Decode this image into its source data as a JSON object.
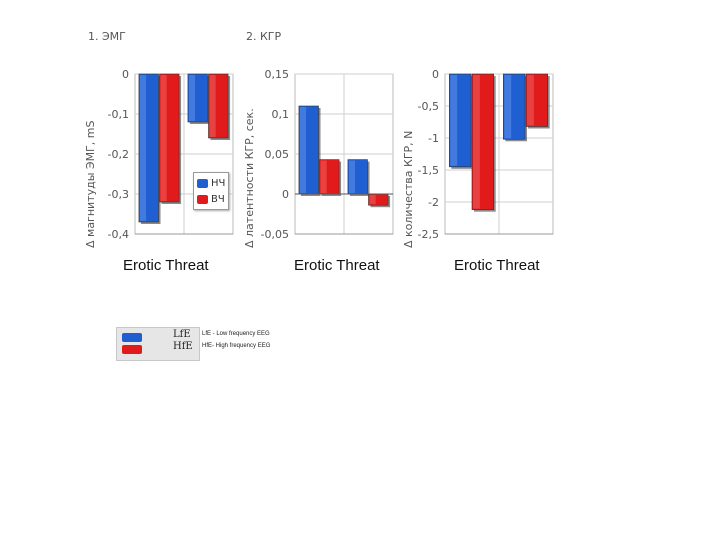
{
  "colors": {
    "blue": "#1f5fd1",
    "red": "#e11b1b",
    "grid": "#cfcfcf"
  },
  "legend": {
    "items": [
      {
        "code": "LfE",
        "desc": "LfE - Low frequency EEG",
        "color": "#1f5fd1"
      },
      {
        "code": "HfE",
        "desc": "HfE- High frequency EEG",
        "color": "#e11b1b"
      }
    ]
  },
  "chart_data": [
    {
      "type": "bar",
      "title": "1. ЭМГ",
      "ylabel": "Δ магнитуды ЭМГ, mS",
      "categories": [
        "Erotic",
        "Threat"
      ],
      "series": [
        {
          "name": "НЧ",
          "values": [
            -0.37,
            -0.12
          ]
        },
        {
          "name": "ВЧ",
          "values": [
            -0.32,
            -0.16
          ]
        }
      ],
      "ylim": [
        -0.4,
        0
      ],
      "yticks": [
        "0",
        "-0,1",
        "-0,2",
        "-0,3",
        "-0,4"
      ],
      "ytick_values": [
        0,
        -0.1,
        -0.2,
        -0.3,
        -0.4
      ],
      "grid": true,
      "legend_placement": "inside-right"
    },
    {
      "type": "bar",
      "title": "2. КГР",
      "ylabel": "Δ латентности КГР, сек.",
      "categories": [
        "Erotic",
        "Threat"
      ],
      "series": [
        {
          "name": "НЧ",
          "values": [
            0.11,
            0.043
          ]
        },
        {
          "name": "ВЧ",
          "values": [
            0.043,
            -0.014
          ]
        }
      ],
      "ylim": [
        -0.05,
        0.15
      ],
      "yticks": [
        "0,15",
        "0,1",
        "0,05",
        "0",
        "-0,05"
      ],
      "ytick_values": [
        0.15,
        0.1,
        0.05,
        0,
        -0.05
      ],
      "grid": true
    },
    {
      "type": "bar",
      "title": "",
      "ylabel": "Δ количества КГР, N",
      "categories": [
        "Erotic",
        "Threat"
      ],
      "series": [
        {
          "name": "НЧ",
          "values": [
            -1.45,
            -1.02
          ]
        },
        {
          "name": "ВЧ",
          "values": [
            -2.12,
            -0.82
          ]
        }
      ],
      "ylim": [
        -2.5,
        0
      ],
      "yticks": [
        "0",
        "-0,5",
        "-1",
        "-1,5",
        "-2",
        "-2,5"
      ],
      "ytick_values": [
        0,
        -0.5,
        -1,
        -1.5,
        -2,
        -2.5
      ],
      "grid": true
    }
  ]
}
